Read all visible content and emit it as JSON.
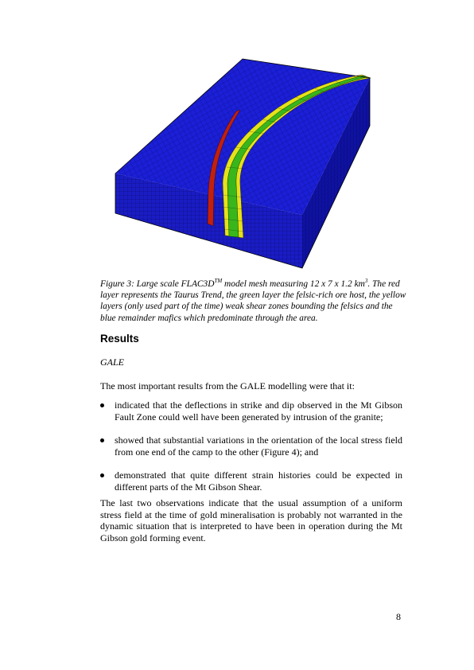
{
  "figure": {
    "caption_prefix": "Figure 3: Large scale FLAC3D",
    "caption_tm": "TM",
    "caption_mid": " model mesh measuring 12 x 7 x 1.2 km",
    "caption_sup": "3",
    "caption_rest": ". The red layer represents the Taurus Trend, the green layer the felsic-rich ore host, the yellow layers (only used part of the time) weak shear zones bounding the felsics and the blue remainder mafics which predominate through the area.",
    "colors": {
      "mafic": "#1b1fd6",
      "taurus": "#c2200e",
      "felsic": "#39b61c",
      "shear": "#e6e21a",
      "side": "#0f12a4"
    }
  },
  "section": {
    "heading": "Results",
    "subheading": "GALE",
    "intro": "The most important results from the GALE modelling were that it:",
    "bullets": [
      "indicated that the deflections in strike and dip observed in the Mt Gibson Fault Zone could well have been generated by intrusion of the granite;",
      "showed that substantial variations in the orientation of the local stress field from one end of the camp to the other (Figure 4); and",
      "demonstrated that quite different strain histories could be expected in different parts of the Mt Gibson Shear."
    ],
    "paragraph": "The last two observations indicate that the usual assumption of a uniform stress field at the time of gold mineralisation is probably not warranted in the dynamic situation that is interpreted to have been in operation during the Mt Gibson gold forming event."
  },
  "page_number": "8"
}
